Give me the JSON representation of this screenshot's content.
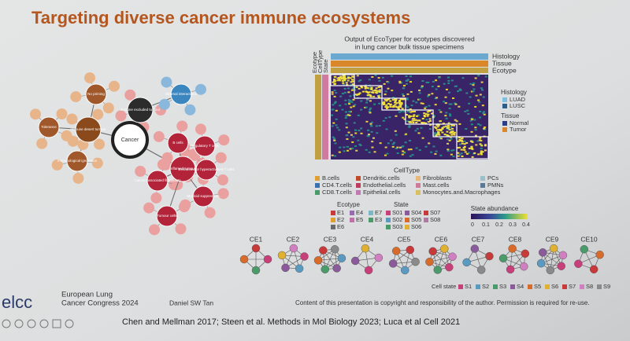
{
  "slide": {
    "title": "Targeting diverse cancer immune ecosystems",
    "diagram": {
      "center": "Cancer",
      "nodes": [
        {
          "label": "Immune excluded tumour",
          "color": "#2c2c2c"
        },
        {
          "label": "Immune desert tumour",
          "color": "#8a4a1c"
        },
        {
          "label": "Inflamed tumour",
          "color": "#b3243a"
        },
        {
          "label": "No priming",
          "color": "#a0582a"
        },
        {
          "label": "Tolerance",
          "color": "#a0582a"
        },
        {
          "label": "Immunological ignorance",
          "color": "#a0582a"
        },
        {
          "label": "Stromal interactions",
          "color": "#3c86c0"
        },
        {
          "label": "B cells",
          "color": "#b3243a"
        },
        {
          "label": "Regulatory T cells",
          "color": "#b3243a"
        },
        {
          "label": "Exhausted or hyperactivated T cells",
          "color": "#b3243a"
        },
        {
          "label": "Cancer-associated fibroblasts",
          "color": "#b3243a"
        },
        {
          "label": "Myeloid suppression",
          "color": "#b3243a"
        },
        {
          "label": "Tumour cells",
          "color": "#b3243a"
        }
      ]
    },
    "heatmap": {
      "title": [
        "Output of EcoTyper for ecotypes discovered",
        "in lung cancer bulk tissue specimens"
      ],
      "top_labels": [
        "Histology",
        "Tissue",
        "Ecotype"
      ],
      "side_labels": [
        "Ecotype",
        "CellType",
        "State"
      ],
      "legends": [
        {
          "title": "Histology",
          "items": [
            {
              "label": "LUAD",
              "color": "#7ec0e0"
            },
            {
              "label": "LUSC",
              "color": "#2a5e8c"
            }
          ]
        },
        {
          "title": "Tissue",
          "items": [
            {
              "label": "Normal",
              "color": "#2a3f8c"
            },
            {
              "label": "Tumor",
              "color": "#d8872a"
            }
          ]
        }
      ]
    },
    "celltype": {
      "title": "CellType",
      "items": [
        {
          "label": "B.cells",
          "color": "#e0a030"
        },
        {
          "label": "Dendritic.cells",
          "color": "#c04a2a"
        },
        {
          "label": "Fibroblasts",
          "color": "#e6b87a"
        },
        {
          "label": "PCs",
          "color": "#9ac0c8"
        },
        {
          "label": "CD4.T.cells",
          "color": "#3a6fb0"
        },
        {
          "label": "Endothelial.cells",
          "color": "#c03a60"
        },
        {
          "label": "Mast.cells",
          "color": "#d07a9a"
        },
        {
          "label": "PMNs",
          "color": "#5a7a9a"
        },
        {
          "label": "CD8.T.cells",
          "color": "#4a9a6a"
        },
        {
          "label": "Epithelial.cells",
          "color": "#c07ab0"
        },
        {
          "label": "Monocytes.and.Macrophages",
          "color": "#d8c060"
        }
      ]
    },
    "ecotype": {
      "title": "Ecotype",
      "items": [
        {
          "label": "E1",
          "color": "#c83a3a"
        },
        {
          "label": "E4",
          "color": "#9a6ab0"
        },
        {
          "label": "E7",
          "color": "#7ab8c8"
        },
        {
          "label": "E2",
          "color": "#e0a030"
        },
        {
          "label": "E5",
          "color": "#c070a8"
        },
        {
          "label": "E3",
          "color": "#4a9a6a"
        },
        {
          "label": "E6",
          "color": "#6a6a6a"
        }
      ]
    },
    "state": {
      "title": "State",
      "items": [
        {
          "label": "S01",
          "color": "#c8407a"
        },
        {
          "label": "S04",
          "color": "#8a5a9a"
        },
        {
          "label": "S07",
          "color": "#c83a3a"
        },
        {
          "label": "S02",
          "color": "#5a9ac0"
        },
        {
          "label": "S05",
          "color": "#d86a2a"
        },
        {
          "label": "S08",
          "color": "#b07aa0"
        },
        {
          "label": "S03",
          "color": "#4a9a6a"
        },
        {
          "label": "S06",
          "color": "#e0b030"
        }
      ]
    },
    "abundance": {
      "title": "State abundance",
      "ticks": [
        "0",
        "0.1",
        "0.2",
        "0.3",
        "0.4"
      ]
    },
    "networks": [
      "CE1",
      "CE2",
      "CE3",
      "CE4",
      "CE5",
      "CE6",
      "CE7",
      "CE8",
      "CE9",
      "CE10"
    ],
    "cell_state": {
      "title": "Cell state",
      "items": [
        {
          "label": "S1",
          "color": "#c8407a"
        },
        {
          "label": "S2",
          "color": "#5a9ac0"
        },
        {
          "label": "S3",
          "color": "#4a9a6a"
        },
        {
          "label": "S4",
          "color": "#8a5a9a"
        },
        {
          "label": "S5",
          "color": "#d86a2a"
        },
        {
          "label": "S6",
          "color": "#e0b030"
        },
        {
          "label": "S7",
          "color": "#c83a3a"
        },
        {
          "label": "S8",
          "color": "#d080c0"
        },
        {
          "label": "S9",
          "color": "#8a8a8a"
        }
      ]
    },
    "footer": {
      "logo": "elcc",
      "congress": [
        "European Lung",
        "Cancer Congress 2024"
      ],
      "speaker": "Daniel SW Tan",
      "disclaimer": "Content of this presentation is copyright and responsibility of the author. Permission is required for re-use.",
      "citation": "Chen and Mellman 2017; Steen et al. Methods in Mol Biology 2023; Luca et al Cell 2021"
    }
  }
}
